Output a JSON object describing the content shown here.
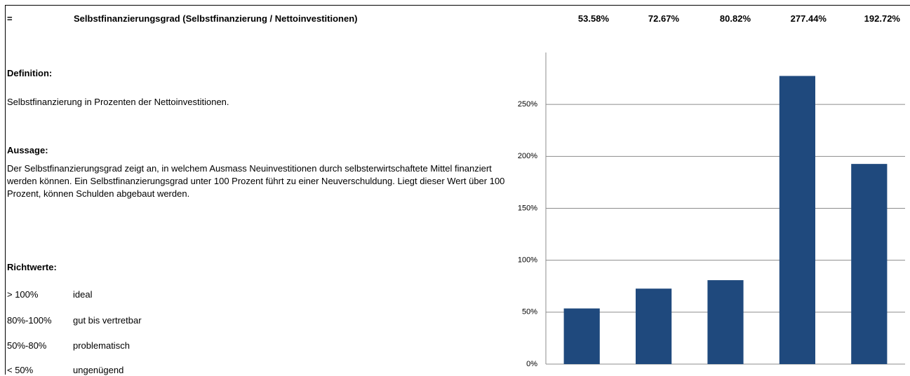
{
  "header": {
    "marker": "=",
    "title": "Selbstfinanzierungsgrad (Selbstfinanzierung / Nettoinvestitionen)"
  },
  "definition": {
    "heading": "Definition:",
    "text": "Selbstfinanzierung in Prozenten der Nettoinvestitionen."
  },
  "statement": {
    "heading": "Aussage:",
    "text": "Der Selbstfinanzierungsgrad zeigt an, in welchem Ausmass Neuinvestitionen durch selbsterwirtschaftete Mittel finanziert werden können. Ein Selbstfinanzierungsgrad unter 100 Prozent führt zu einer Neuverschuldung. Liegt dieser Wert über 100 Prozent, können Schulden abgebaut werden."
  },
  "guidelines": {
    "heading": "Richtwerte:",
    "rows": [
      [
        "> 100%",
        "ideal"
      ],
      [
        "80%-100%",
        "gut bis vertretbar"
      ],
      [
        "50%-80%",
        "problematisch"
      ],
      [
        "< 50%",
        "ungenügend"
      ]
    ]
  },
  "chart_data": {
    "type": "bar",
    "categories": [
      null,
      null,
      null,
      null,
      null
    ],
    "values": [
      53.58,
      72.67,
      80.82,
      277.44,
      192.72
    ],
    "value_labels": [
      "53.58%",
      "72.67%",
      "80.82%",
      "277.44%",
      "192.72%"
    ],
    "color": "#1f497d",
    "ylim": [
      0,
      300
    ],
    "yticks": [
      {
        "value": 0,
        "label": "0%"
      },
      {
        "value": 50,
        "label": "50%"
      },
      {
        "value": 100,
        "label": "100%"
      },
      {
        "value": 150,
        "label": "150%"
      },
      {
        "value": 200,
        "label": "200%"
      },
      {
        "value": 250,
        "label": "250%"
      }
    ],
    "grid": true
  }
}
